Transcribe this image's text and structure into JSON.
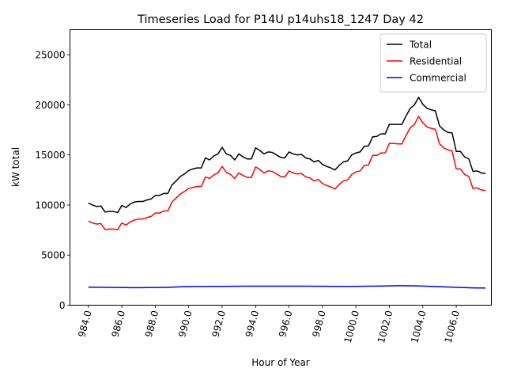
{
  "chart_data": {
    "type": "line",
    "title": "Timeseries Load for P14U p14uhs18_1247  Day 42",
    "xlabel": "Hour of Year",
    "ylabel": "kW total",
    "xlim": [
      982.9,
      1008.1
    ],
    "ylim": [
      0,
      27500
    ],
    "grid": false,
    "legend_position": "top-right",
    "xticks": [
      984,
      986,
      988,
      990,
      992,
      994,
      996,
      998,
      1000,
      1002,
      1004,
      1006
    ],
    "xtick_labels": [
      "984.0",
      "986.0",
      "988.0",
      "990.0",
      "992.0",
      "994.0",
      "996.0",
      "998.0",
      "1000.0",
      "1002.0",
      "1004.0",
      "1006.0"
    ],
    "yticks": [
      0,
      5000,
      10000,
      15000,
      20000,
      25000
    ],
    "ytick_labels": [
      "0",
      "5000",
      "10000",
      "15000",
      "20000",
      "25000"
    ],
    "x": [
      984.0,
      984.25,
      984.5,
      984.75,
      985.0,
      985.25,
      985.5,
      985.75,
      986.0,
      986.25,
      986.5,
      986.75,
      987.0,
      987.25,
      987.5,
      987.75,
      988.0,
      988.25,
      988.5,
      988.75,
      989.0,
      989.25,
      989.5,
      989.75,
      990.0,
      990.25,
      990.5,
      990.75,
      991.0,
      991.25,
      991.5,
      991.75,
      992.0,
      992.25,
      992.5,
      992.75,
      993.0,
      993.25,
      993.5,
      993.75,
      994.0,
      994.25,
      994.5,
      994.75,
      995.0,
      995.25,
      995.5,
      995.75,
      996.0,
      996.25,
      996.5,
      996.75,
      997.0,
      997.25,
      997.5,
      997.75,
      998.0,
      998.25,
      998.5,
      998.75,
      999.0,
      999.25,
      999.5,
      999.75,
      1000.0,
      1000.25,
      1000.5,
      1000.75,
      1001.0,
      1001.25,
      1001.5,
      1001.75,
      1002.0,
      1002.25,
      1002.5,
      1002.75,
      1003.0,
      1003.25,
      1003.5,
      1003.75,
      1004.0,
      1004.25,
      1004.5,
      1004.75,
      1005.0,
      1005.25,
      1005.5,
      1005.75,
      1006.0,
      1006.25,
      1006.5,
      1006.75,
      1007.0,
      1007.25,
      1007.5,
      1007.75
    ],
    "series": [
      {
        "name": "Total",
        "color": "#000000",
        "values": [
          10200,
          10000,
          9850,
          9900,
          9300,
          9350,
          9350,
          9250,
          9950,
          9750,
          10100,
          10300,
          10350,
          10350,
          10500,
          10600,
          10950,
          10950,
          11150,
          11150,
          12000,
          12400,
          12850,
          13100,
          13450,
          13600,
          13700,
          13700,
          14700,
          14500,
          14900,
          15100,
          15750,
          15100,
          14950,
          14500,
          15100,
          14800,
          14600,
          14600,
          15700,
          15450,
          15100,
          15300,
          15250,
          15000,
          14750,
          14700,
          15300,
          15100,
          15000,
          15050,
          14700,
          14600,
          14300,
          14450,
          14050,
          13850,
          13700,
          13500,
          13950,
          14300,
          14400,
          15000,
          15200,
          15300,
          15850,
          15900,
          16800,
          16850,
          17100,
          17100,
          18050,
          18050,
          18050,
          18050,
          18900,
          19650,
          20000,
          20750,
          20050,
          19650,
          19500,
          19400,
          17900,
          17500,
          17250,
          17200,
          15350,
          15350,
          14800,
          14600,
          13350,
          13400,
          13200,
          13150
        ]
      },
      {
        "name": "Residential",
        "color": "#ff0000",
        "values": [
          8400,
          8200,
          8100,
          8150,
          7550,
          7600,
          7600,
          7550,
          8200,
          8000,
          8300,
          8500,
          8600,
          8600,
          8750,
          8850,
          9200,
          9200,
          9400,
          9400,
          10300,
          10700,
          11100,
          11350,
          11650,
          11750,
          11850,
          11850,
          12800,
          12650,
          13000,
          13200,
          13850,
          13250,
          13050,
          12650,
          13200,
          12950,
          12750,
          12750,
          13800,
          13550,
          13200,
          13400,
          13350,
          13100,
          12850,
          12800,
          13400,
          13200,
          13100,
          13150,
          12800,
          12700,
          12400,
          12550,
          12150,
          11950,
          11800,
          11600,
          12050,
          12400,
          12500,
          13050,
          13300,
          13400,
          13950,
          14000,
          14950,
          14950,
          15200,
          15200,
          16150,
          16150,
          16100,
          16100,
          16950,
          17700,
          18050,
          18850,
          18200,
          17800,
          17650,
          17550,
          16100,
          15700,
          15500,
          15400,
          13600,
          13600,
          13050,
          12850,
          11650,
          11700,
          11500,
          11450
        ]
      },
      {
        "name": "Commercial",
        "color": "#0000ff",
        "values": [
          1800,
          1795,
          1790,
          1785,
          1780,
          1775,
          1770,
          1765,
          1760,
          1755,
          1752,
          1750,
          1750,
          1752,
          1755,
          1760,
          1765,
          1770,
          1775,
          1780,
          1800,
          1820,
          1835,
          1850,
          1860,
          1865,
          1865,
          1865,
          1870,
          1872,
          1875,
          1875,
          1880,
          1880,
          1885,
          1885,
          1890,
          1893,
          1895,
          1897,
          1900,
          1900,
          1900,
          1900,
          1900,
          1900,
          1900,
          1900,
          1900,
          1900,
          1900,
          1897,
          1895,
          1892,
          1890,
          1888,
          1885,
          1883,
          1880,
          1878,
          1875,
          1872,
          1870,
          1875,
          1880,
          1885,
          1890,
          1895,
          1900,
          1905,
          1910,
          1920,
          1930,
          1940,
          1945,
          1945,
          1940,
          1935,
          1925,
          1915,
          1905,
          1890,
          1875,
          1860,
          1845,
          1830,
          1815,
          1800,
          1785,
          1770,
          1755,
          1740,
          1730,
          1720,
          1715,
          1710
        ]
      }
    ]
  }
}
